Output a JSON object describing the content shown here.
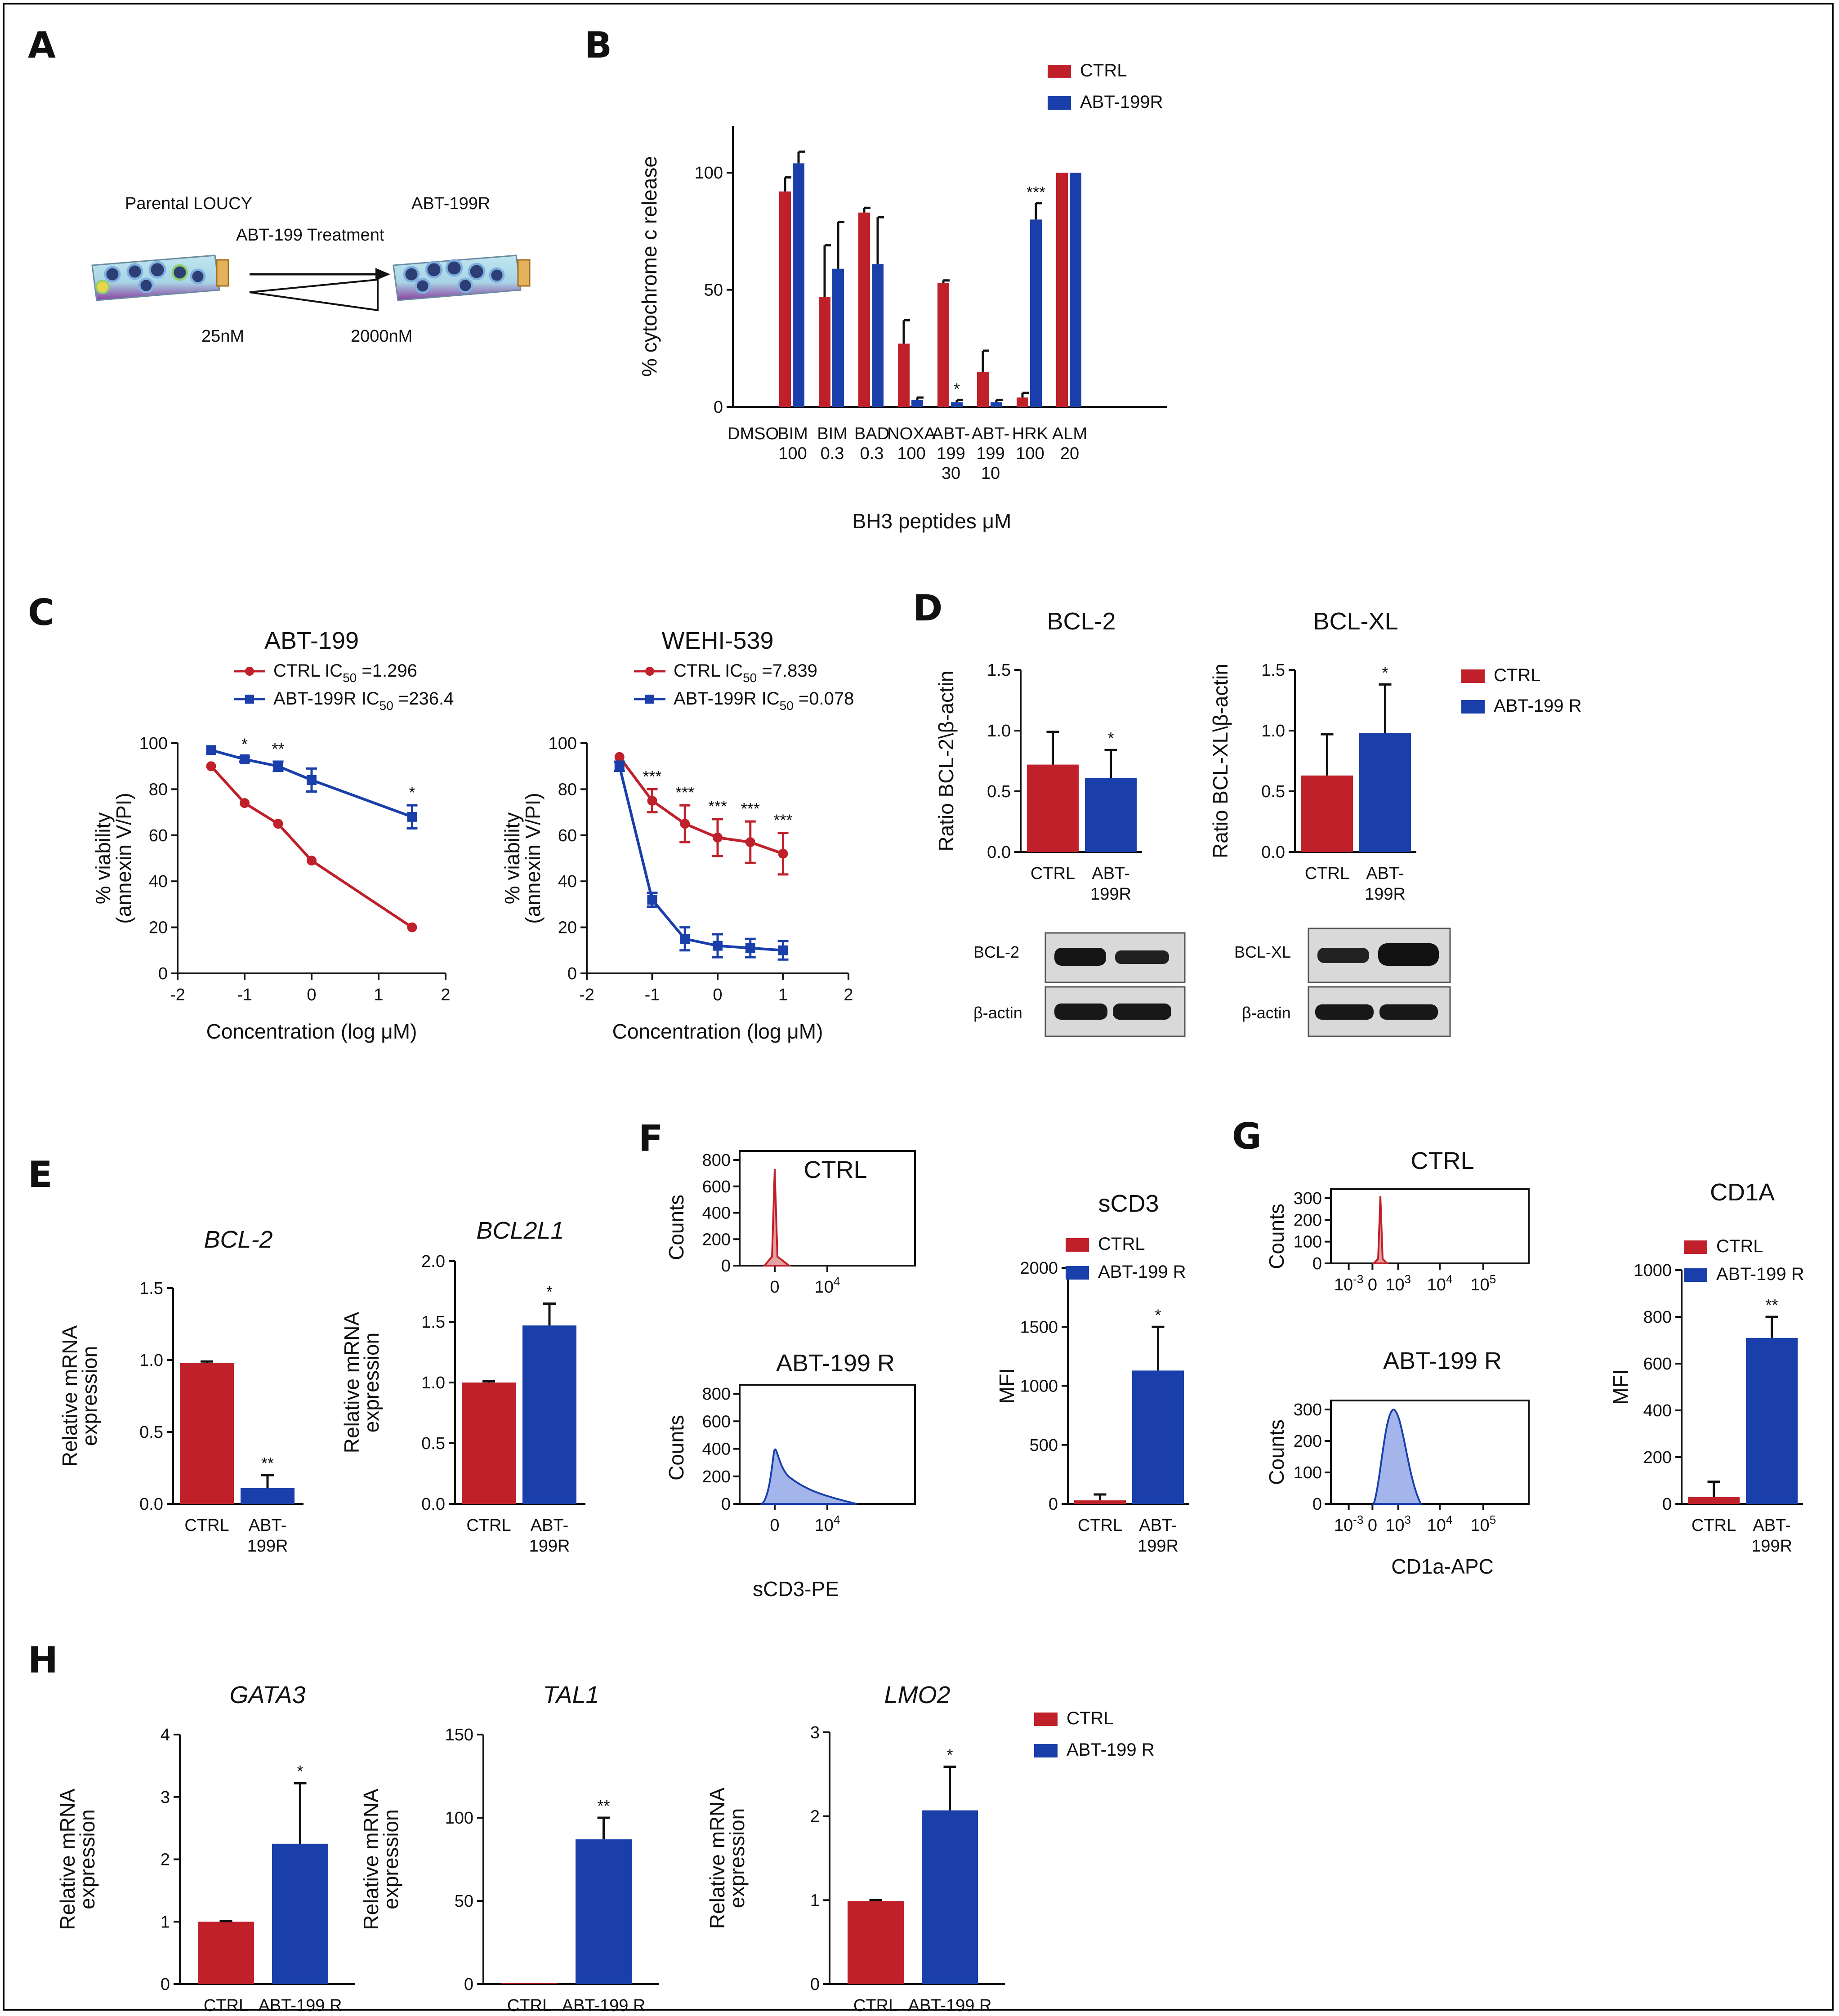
{
  "colors": {
    "ctrl": "#c0202a",
    "abt": "#1a3faa",
    "ctrl_fill": "#e6a1a1",
    "abt_fill": "#a3b5ea"
  },
  "panels": {
    "A": {
      "letter": "A",
      "parental_label": "Parental LOUCY",
      "treatment_label": "ABT-199 Treatment",
      "resistant_label": "ABT-199R",
      "dose_low": "25nM",
      "dose_high": "2000nM"
    },
    "B": {
      "letter": "B"
    },
    "C": {
      "letter": "C"
    },
    "D": {
      "letter": "D",
      "blot1_band1": "BCL-2",
      "blot1_band2": "β-actin",
      "blot2_band1": "BCL-XL",
      "blot2_band2": "β-actin"
    },
    "E": {
      "letter": "E"
    },
    "F": {
      "letter": "F",
      "flow_title_top": "CTRL",
      "flow_title_bottom": "ABT-199 R",
      "flow_ylabel": "Counts",
      "flow_xlabel": "sCD3-PE"
    },
    "G": {
      "letter": "G",
      "flow_title_top": "CTRL",
      "flow_title_bottom": "ABT-199 R",
      "flow_ylabel": "Counts",
      "flow_xlabel": "CD1a-APC"
    },
    "H": {
      "letter": "H"
    }
  },
  "chart_data": [
    {
      "id": "B",
      "type": "bar",
      "title": "",
      "categories": [
        "DMSO",
        "BIM 100",
        "BIM 0.3",
        "BAD 0.3",
        "NOXA 100",
        "ABT-199 30",
        "ABT-199 10",
        "HRK 100",
        "ALM 20"
      ],
      "category_lines": [
        [
          "DMSO",
          ""
        ],
        [
          "BIM",
          "100"
        ],
        [
          "BIM",
          "0.3"
        ],
        [
          "BAD",
          "0.3"
        ],
        [
          "NOXA",
          "100"
        ],
        [
          "ABT-",
          "199",
          "30"
        ],
        [
          "ABT-",
          "199",
          "10"
        ],
        [
          "HRK",
          "100"
        ],
        [
          "ALM",
          "20"
        ]
      ],
      "series": [
        {
          "name": "CTRL",
          "values": [
            0,
            92,
            47,
            83,
            27,
            53,
            15,
            4,
            100
          ],
          "errors": [
            0,
            6,
            22,
            2,
            10,
            1,
            9,
            2,
            0
          ]
        },
        {
          "name": "ABT-199R",
          "values": [
            0,
            104,
            59,
            61,
            3,
            2,
            2,
            80,
            100
          ],
          "errors": [
            0,
            5,
            20,
            20,
            1,
            1,
            1,
            7,
            0
          ]
        }
      ],
      "significance": [
        {
          "category": 5,
          "series": 1,
          "mark": "*"
        },
        {
          "category": 7,
          "series": 1,
          "mark": "***"
        }
      ],
      "xlabel": "BH3 peptides μM",
      "ylabel": "% cytochrome c release",
      "ylim": [
        0,
        120
      ],
      "yticks": [
        "0",
        "50",
        "100"
      ],
      "legend": [
        "CTRL",
        "ABT-199R"
      ]
    },
    {
      "id": "C1",
      "type": "line",
      "title": "ABT-199",
      "legend": [
        "CTRL IC50 =1.296",
        "ABT-199R IC50 =236.4"
      ],
      "series": [
        {
          "name": "CTRL IC50 =1.296",
          "x": [
            -1.5,
            -1,
            -0.5,
            0,
            1.5
          ],
          "y": [
            90,
            74,
            65,
            49,
            20
          ],
          "errors": [
            0,
            0,
            0,
            0,
            0
          ]
        },
        {
          "name": "ABT-199R IC50 =236.4",
          "x": [
            -1.5,
            -1,
            -0.5,
            0,
            1.5
          ],
          "y": [
            97,
            93,
            90,
            84,
            68
          ],
          "errors": [
            0,
            1,
            2,
            5,
            5
          ]
        }
      ],
      "significance": [
        {
          "x": -1,
          "mark": "*"
        },
        {
          "x": -0.5,
          "mark": "**"
        },
        {
          "x": 1.5,
          "mark": "*"
        }
      ],
      "xlabel": "Concentration (log μM)",
      "ylabel": [
        "% viability",
        "(annexin V/PI)"
      ],
      "xlim": [
        -2,
        2
      ],
      "ylim": [
        0,
        100
      ],
      "xticks": [
        "-2",
        "-1",
        "0",
        "1",
        "2"
      ],
      "yticks": [
        "0",
        "20",
        "40",
        "60",
        "80",
        "100"
      ]
    },
    {
      "id": "C2",
      "type": "line",
      "title": "WEHI-539",
      "legend": [
        "CTRL IC50 =7.839",
        "ABT-199R IC50 =0.078"
      ],
      "series": [
        {
          "name": "CTRL IC50 =7.839",
          "x": [
            -1.5,
            -1,
            -0.5,
            0,
            0.5,
            1
          ],
          "y": [
            94,
            75,
            65,
            59,
            57,
            52
          ],
          "errors": [
            0,
            5,
            8,
            8,
            9,
            9
          ]
        },
        {
          "name": "ABT-199R IC50 =0.078",
          "x": [
            -1.5,
            -1,
            -0.5,
            0,
            0.5,
            1
          ],
          "y": [
            90,
            32,
            15,
            12,
            11,
            10
          ],
          "errors": [
            2,
            3,
            5,
            5,
            4,
            4
          ]
        }
      ],
      "significance": [
        {
          "x": -1,
          "mark": "***"
        },
        {
          "x": -0.5,
          "mark": "***"
        },
        {
          "x": 0,
          "mark": "***"
        },
        {
          "x": 0.5,
          "mark": "***"
        },
        {
          "x": 1,
          "mark": "***"
        }
      ],
      "xlabel": "Concentration (log μM)",
      "ylabel": [
        "% viability",
        "(annexin V/PI)"
      ],
      "xlim": [
        -2,
        2
      ],
      "ylim": [
        0,
        100
      ],
      "xticks": [
        "-2",
        "-1",
        "0",
        "1",
        "2"
      ],
      "yticks": [
        "0",
        "20",
        "40",
        "60",
        "80",
        "100"
      ]
    },
    {
      "id": "D1",
      "type": "bar",
      "title": "BCL-2",
      "categories": [
        "CTRL",
        "ABT-199R"
      ],
      "category_lines": [
        [
          "CTRL"
        ],
        [
          "ABT-",
          "199R"
        ]
      ],
      "values": [
        0.72,
        0.61
      ],
      "errors": [
        0.27,
        0.23
      ],
      "significance": [
        "",
        "*"
      ],
      "ylabel": "Ratio BCL-2\\β-actin",
      "ylim": [
        0,
        1.5
      ],
      "yticks": [
        "0.0",
        "0.5",
        "1.0",
        "1.5"
      ]
    },
    {
      "id": "D2",
      "type": "bar",
      "title": "BCL-XL",
      "categories": [
        "CTRL",
        "ABT-199R"
      ],
      "category_lines": [
        [
          "CTRL"
        ],
        [
          "ABT-",
          "199R"
        ]
      ],
      "values": [
        0.63,
        0.98
      ],
      "errors": [
        0.34,
        0.4
      ],
      "significance": [
        "",
        "*"
      ],
      "ylabel": "Ratio BCL-XL\\β-actin",
      "ylim": [
        0,
        1.5
      ],
      "yticks": [
        "0.0",
        "0.5",
        "1.0",
        "1.5"
      ],
      "legend": [
        "CTRL",
        "ABT-199 R"
      ]
    },
    {
      "id": "E1",
      "type": "bar",
      "title": "BCL-2",
      "title_italic": true,
      "categories": [
        "CTRL",
        "ABT-199R"
      ],
      "category_lines": [
        [
          "CTRL"
        ],
        [
          "ABT-",
          "199R"
        ]
      ],
      "values": [
        0.98,
        0.11
      ],
      "errors": [
        0.01,
        0.09
      ],
      "significance": [
        "",
        "**"
      ],
      "ylabel": [
        "Relative mRNA",
        "expression"
      ],
      "ylim": [
        0,
        1.5
      ],
      "yticks": [
        "0.0",
        "0.5",
        "1.0",
        "1.5"
      ]
    },
    {
      "id": "E2",
      "type": "bar",
      "title": "BCL2L1",
      "title_italic": true,
      "categories": [
        "CTRL",
        "ABT-199R"
      ],
      "category_lines": [
        [
          "CTRL"
        ],
        [
          "ABT-",
          "199R"
        ]
      ],
      "values": [
        1.0,
        1.47
      ],
      "errors": [
        0.01,
        0.18
      ],
      "significance": [
        "",
        "*"
      ],
      "ylabel": [
        "Relative mRNA",
        "expression"
      ],
      "ylim": [
        0,
        2.0
      ],
      "yticks": [
        "0.0",
        "0.5",
        "1.0",
        "1.5",
        "2.0"
      ]
    },
    {
      "id": "F",
      "type": "bar",
      "title": "sCD3",
      "categories": [
        "CTRL",
        "ABT-199R"
      ],
      "category_lines": [
        [
          "CTRL"
        ],
        [
          "ABT-",
          "199R"
        ]
      ],
      "values": [
        30,
        1130
      ],
      "errors": [
        50,
        370
      ],
      "significance": [
        "",
        "*"
      ],
      "ylabel": "MFI",
      "ylim": [
        0,
        2000
      ],
      "yticks": [
        "0",
        "500",
        "1000",
        "1500",
        "2000"
      ],
      "legend": [
        "CTRL",
        "ABT-199 R"
      ],
      "histograms": {
        "ctrl": {
          "yticks": [
            "0",
            "200",
            "400",
            "600",
            "800"
          ],
          "xticks": [
            "0",
            "10^4"
          ]
        },
        "abt": {
          "yticks": [
            "0",
            "200",
            "400",
            "600",
            "800"
          ],
          "xticks": [
            "0",
            "10^4"
          ]
        }
      }
    },
    {
      "id": "G",
      "type": "bar",
      "title": "CD1A",
      "categories": [
        "CTRL",
        "ABT-199R"
      ],
      "category_lines": [
        [
          "CTRL"
        ],
        [
          "ABT-",
          "199R"
        ]
      ],
      "values": [
        30,
        710
      ],
      "errors": [
        65,
        90
      ],
      "significance": [
        "",
        "**"
      ],
      "ylabel": "MFI",
      "ylim": [
        0,
        1000
      ],
      "yticks": [
        "0",
        "200",
        "400",
        "600",
        "800",
        "1000"
      ],
      "legend": [
        "CTRL",
        "ABT-199 R"
      ],
      "histograms": {
        "ctrl": {
          "yticks": [
            "0",
            "100",
            "200",
            "300"
          ],
          "xticks": [
            "10^-3",
            "0",
            "10^3",
            "10^4",
            "10^5"
          ]
        },
        "abt": {
          "yticks": [
            "0",
            "100",
            "200",
            "300"
          ],
          "xticks": [
            "10^-3",
            "0",
            "10^3",
            "10^4",
            "10^5"
          ]
        }
      }
    },
    {
      "id": "H1",
      "type": "bar",
      "title": "GATA3",
      "title_italic": true,
      "categories": [
        "CTRL",
        "ABT-199 R"
      ],
      "category_lines": [
        [
          "CTRL"
        ],
        [
          "ABT-199 R"
        ]
      ],
      "values": [
        1.0,
        2.25
      ],
      "errors": [
        0.01,
        0.97
      ],
      "significance": [
        "",
        "*"
      ],
      "ylabel": [
        "Relative mRNA",
        "expression"
      ],
      "ylim": [
        0,
        4
      ],
      "yticks": [
        "0",
        "1",
        "2",
        "3",
        "4"
      ]
    },
    {
      "id": "H2",
      "type": "bar",
      "title": "TAL1",
      "title_italic": true,
      "categories": [
        "CTRL",
        "ABT-199 R"
      ],
      "category_lines": [
        [
          "CTRL"
        ],
        [
          "ABT-199 R"
        ]
      ],
      "values": [
        0.5,
        87
      ],
      "errors": [
        0,
        13
      ],
      "significance": [
        "",
        "**"
      ],
      "ylabel": [
        "Relative mRNA",
        "expression"
      ],
      "ylim": [
        0,
        150
      ],
      "yticks": [
        "0",
        "50",
        "100",
        "150"
      ]
    },
    {
      "id": "H3",
      "type": "bar",
      "title": "LMO2",
      "title_italic": true,
      "categories": [
        "CTRL",
        "ABT-199 R"
      ],
      "category_lines": [
        [
          "CTRL"
        ],
        [
          "ABT-199 R"
        ]
      ],
      "values": [
        0.99,
        2.07
      ],
      "errors": [
        0.01,
        0.52
      ],
      "significance": [
        "",
        "*"
      ],
      "ylabel": [
        "Relative mRNA",
        "expression"
      ],
      "ylim": [
        0,
        3
      ],
      "yticks": [
        "0",
        "1",
        "2",
        "3"
      ],
      "legend": [
        "CTRL",
        "ABT-199 R"
      ]
    }
  ]
}
